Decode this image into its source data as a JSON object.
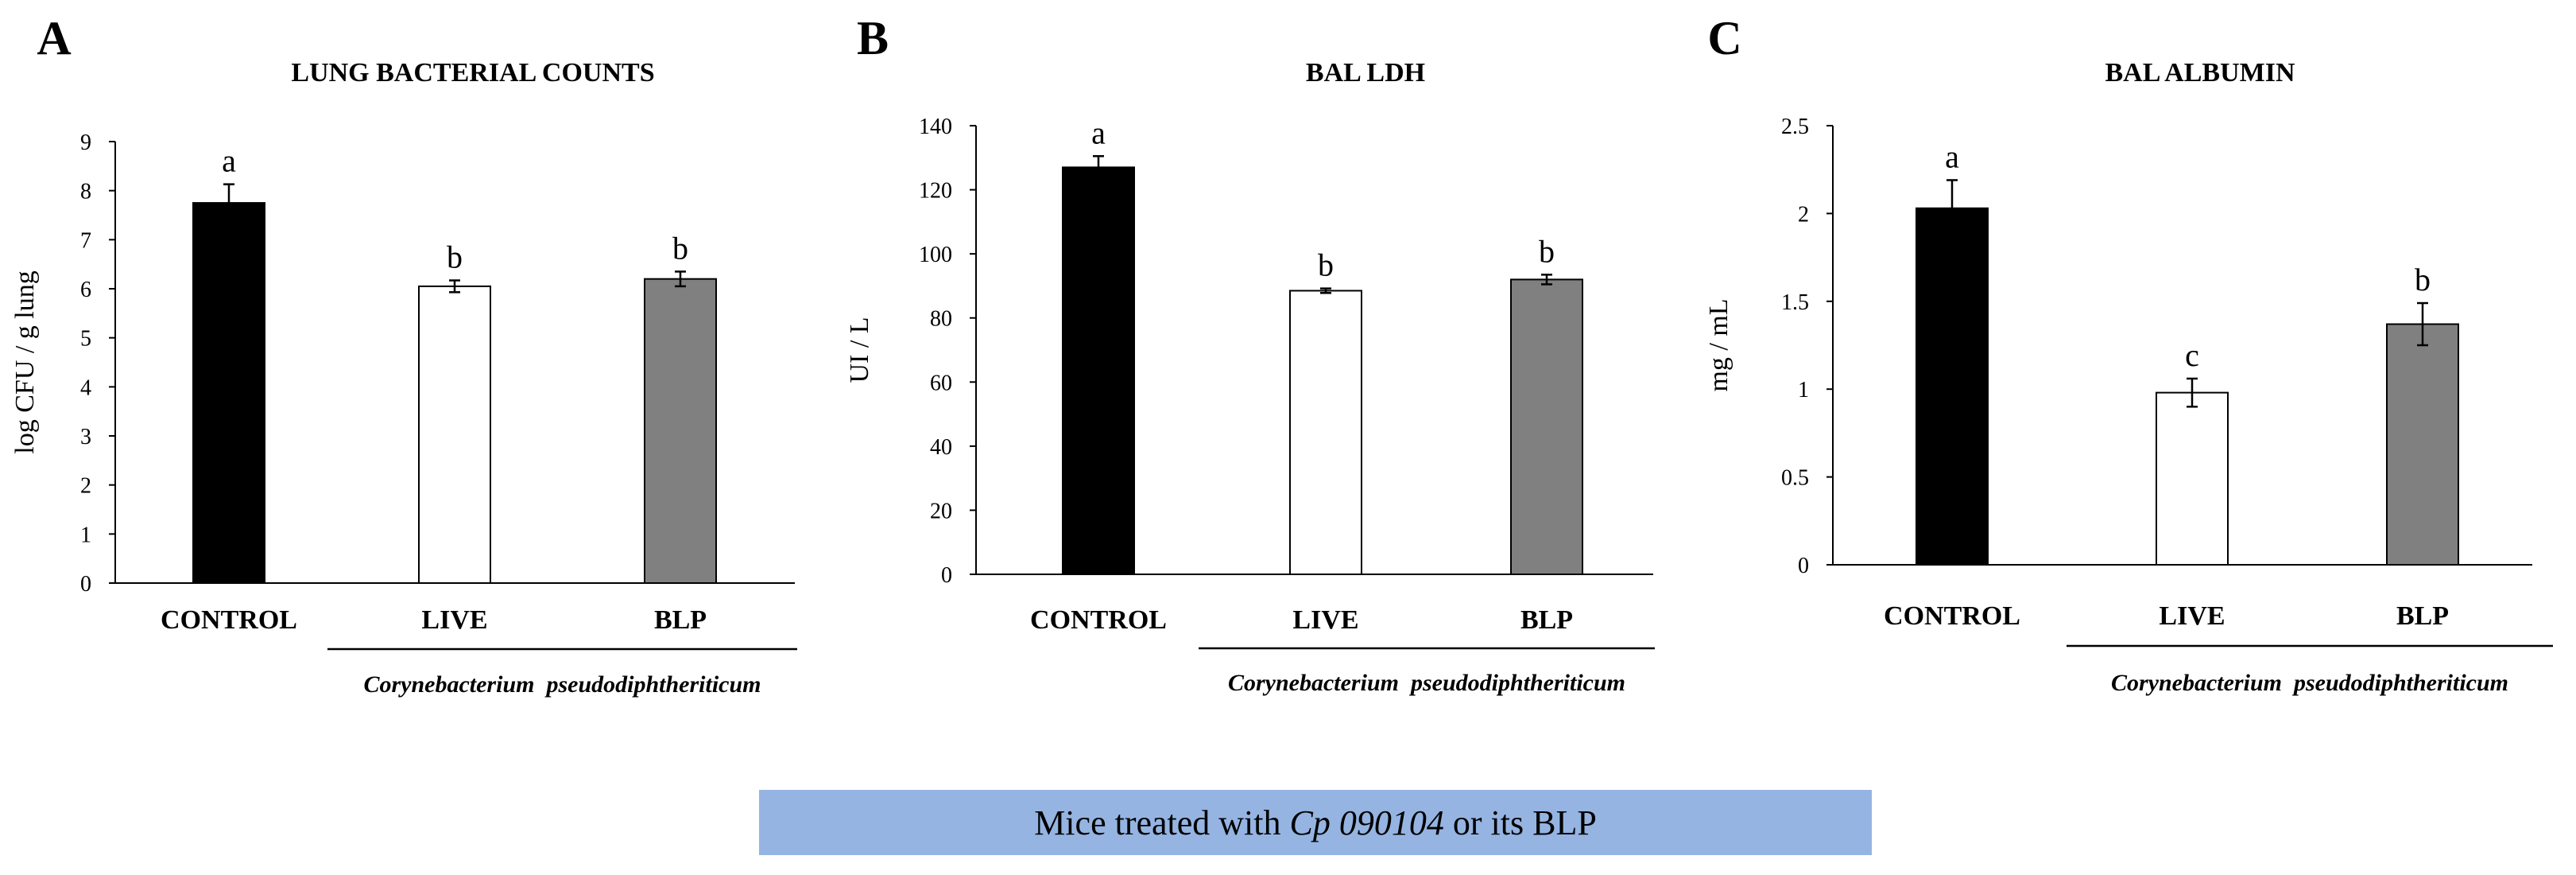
{
  "panels": [
    {
      "letter": "A",
      "title": "LUNG BACTERIAL COUNTS",
      "group_label": "Corynebacterium  pseudodiphtheriticum",
      "chart_data": {
        "type": "bar",
        "title": "LUNG BACTERIAL COUNTS",
        "ylabel": "log CFU / g lung",
        "xlabel": "",
        "ylim": [
          0,
          9
        ],
        "yticks": [
          "0",
          "1",
          "2",
          "3",
          "4",
          "5",
          "6",
          "7",
          "8",
          "9"
        ],
        "categories": [
          "CONTROL",
          "LIVE",
          "BLP"
        ],
        "values": [
          7.75,
          6.05,
          6.2
        ],
        "errors": [
          0.38,
          0.12,
          0.15
        ],
        "letters": [
          "a",
          "b",
          "b"
        ],
        "colors": [
          "#000000",
          "#ffffff",
          "#808080"
        ],
        "grid": false
      }
    },
    {
      "letter": "B",
      "title": "BAL LDH",
      "group_label": "Corynebacterium  pseudodiphtheriticum",
      "chart_data": {
        "type": "bar",
        "title": "BAL LDH",
        "ylabel": "UI / L",
        "xlabel": "",
        "ylim": [
          0,
          140
        ],
        "yticks": [
          "0",
          "20",
          "40",
          "60",
          "80",
          "100",
          "120",
          "140"
        ],
        "categories": [
          "CONTROL",
          "LIVE",
          "BLP"
        ],
        "values": [
          127,
          88.5,
          92
        ],
        "errors": [
          3.5,
          0.7,
          1.5
        ],
        "letters": [
          "a",
          "b",
          "b"
        ],
        "colors": [
          "#000000",
          "#ffffff",
          "#808080"
        ],
        "grid": false
      }
    },
    {
      "letter": "C",
      "title": "BAL ALBUMIN",
      "group_label": "Corynebacterium  pseudodiphtheriticum",
      "chart_data": {
        "type": "bar",
        "title": "BAL ALBUMIN",
        "ylabel": "mg / mL",
        "xlabel": "",
        "ylim": [
          0,
          2.5
        ],
        "yticks": [
          "0",
          "0.5",
          "1",
          "1.5",
          "2",
          "2.5"
        ],
        "categories": [
          "CONTROL",
          "LIVE",
          "BLP"
        ],
        "values": [
          2.03,
          0.98,
          1.37
        ],
        "errors": [
          0.16,
          0.08,
          0.12
        ],
        "letters": [
          "a",
          "c",
          "b"
        ],
        "colors": [
          "#000000",
          "#ffffff",
          "#808080"
        ],
        "grid": false
      }
    }
  ],
  "banner": {
    "prefix": "Mice treated with ",
    "italic": "Cp 090104",
    "suffix": " or its BLP",
    "color": "#95b4e2"
  }
}
